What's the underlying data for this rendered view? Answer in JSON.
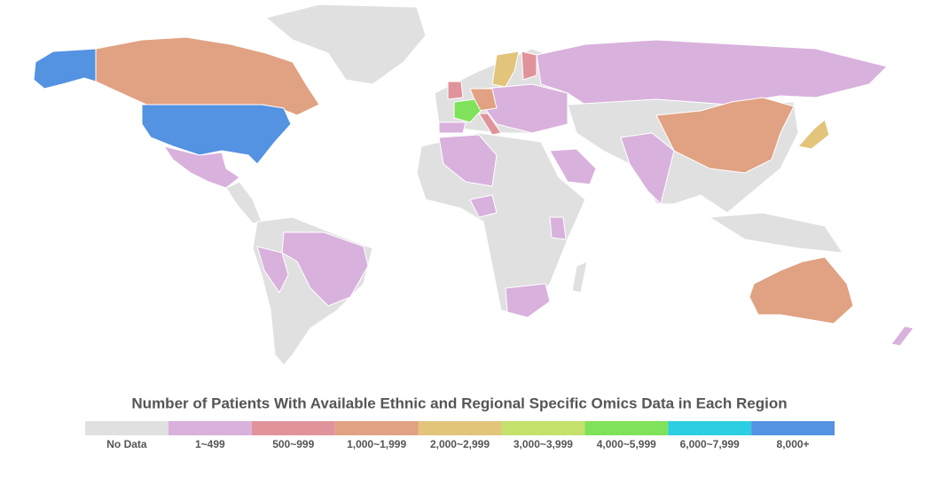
{
  "title": "Number of Patients With Available Ethnic and Regional Specific Omics Data in Each Region",
  "legend": [
    {
      "label": "No Data",
      "color": "#e0e0e0"
    },
    {
      "label": "1~499",
      "color": "#d9b1dd"
    },
    {
      "label": "500~999",
      "color": "#e0939b"
    },
    {
      "label": "1,000~1,999",
      "color": "#e0a282"
    },
    {
      "label": "2,000~2,999",
      "color": "#e2c47b"
    },
    {
      "label": "3,000~3,999",
      "color": "#c3e16b"
    },
    {
      "label": "4,000~5,999",
      "color": "#7fe25a"
    },
    {
      "label": "6,000~7,999",
      "color": "#2ccfe2"
    },
    {
      "label": "8,000+",
      "color": "#5492e2"
    }
  ]
}
